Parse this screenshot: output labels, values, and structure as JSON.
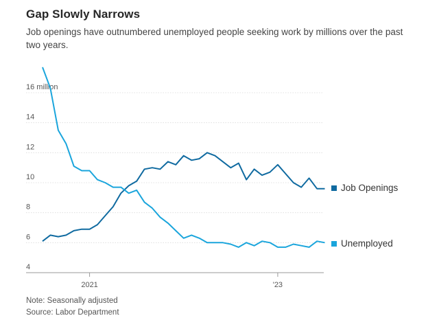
{
  "header": {
    "title": "Gap Slowly Narrows",
    "subtitle": "Job openings have outnumbered unemployed people seeking work by millions over the past two years."
  },
  "footer": {
    "note": "Note: Seasonally adjusted",
    "source": "Source: Labor Department"
  },
  "colors": {
    "job_openings": "#0f6aa0",
    "unemployed": "#1aa5dc",
    "grid": "#d9d9d9",
    "axis_text": "#555555"
  },
  "chart_data": {
    "type": "line",
    "title": "Gap Slowly Narrows",
    "subtitle": "Job openings have outnumbered unemployed people seeking work by millions over the past two years.",
    "xlabel": "",
    "ylabel": "",
    "ylim": [
      4,
      16
    ],
    "grid": true,
    "legend_placement": "right",
    "x": [
      "2020-07",
      "2020-08",
      "2020-09",
      "2020-10",
      "2020-11",
      "2020-12",
      "2021-01",
      "2021-02",
      "2021-03",
      "2021-04",
      "2021-05",
      "2021-06",
      "2021-07",
      "2021-08",
      "2021-09",
      "2021-10",
      "2021-11",
      "2021-12",
      "2022-01",
      "2022-02",
      "2022-03",
      "2022-04",
      "2022-05",
      "2022-06",
      "2022-07",
      "2022-08",
      "2022-09",
      "2022-10",
      "2022-11",
      "2022-12",
      "2023-01",
      "2023-02",
      "2023-03",
      "2023-04",
      "2023-05"
    ],
    "x_ticks": [
      {
        "x": "2021-01",
        "label": "2021"
      },
      {
        "x": "2023-01",
        "label": "'23"
      }
    ],
    "y_ticks": [
      {
        "value": 4,
        "label": "4"
      },
      {
        "value": 6,
        "label": "6"
      },
      {
        "value": 8,
        "label": "8"
      },
      {
        "value": 10,
        "label": "10"
      },
      {
        "value": 12,
        "label": "12"
      },
      {
        "value": 14,
        "label": "14"
      },
      {
        "value": 16,
        "label": "16 million"
      }
    ],
    "series": [
      {
        "name": "Job Openings",
        "color": "#0f6aa0",
        "values": [
          6.1,
          6.5,
          6.4,
          6.5,
          6.8,
          6.9,
          6.9,
          7.2,
          7.8,
          8.4,
          9.3,
          9.8,
          10.1,
          10.9,
          11.0,
          10.9,
          11.4,
          11.2,
          11.8,
          11.5,
          11.6,
          12.0,
          11.8,
          11.4,
          11.0,
          11.3,
          10.2,
          10.9,
          10.5,
          10.7,
          11.2,
          10.6,
          10.0,
          9.7,
          10.3
        ]
      },
      {
        "name": "Unemployed",
        "color": "#1aa5dc",
        "values": [
          17.7,
          16.3,
          13.5,
          12.6,
          11.1,
          10.8,
          10.8,
          10.2,
          10.0,
          9.7,
          9.7,
          9.3,
          9.5,
          8.7,
          8.3,
          7.7,
          7.3,
          6.8,
          6.3,
          6.5,
          6.3,
          6.0,
          6.0,
          6.0,
          5.9,
          5.7,
          6.0,
          5.8,
          6.1,
          6.0,
          5.7,
          5.7,
          5.9,
          5.8,
          5.7
        ]
      }
    ],
    "tail": {
      "job_openings": [
        9.6,
        9.6
      ],
      "unemployed": [
        6.1,
        6.0
      ]
    }
  }
}
